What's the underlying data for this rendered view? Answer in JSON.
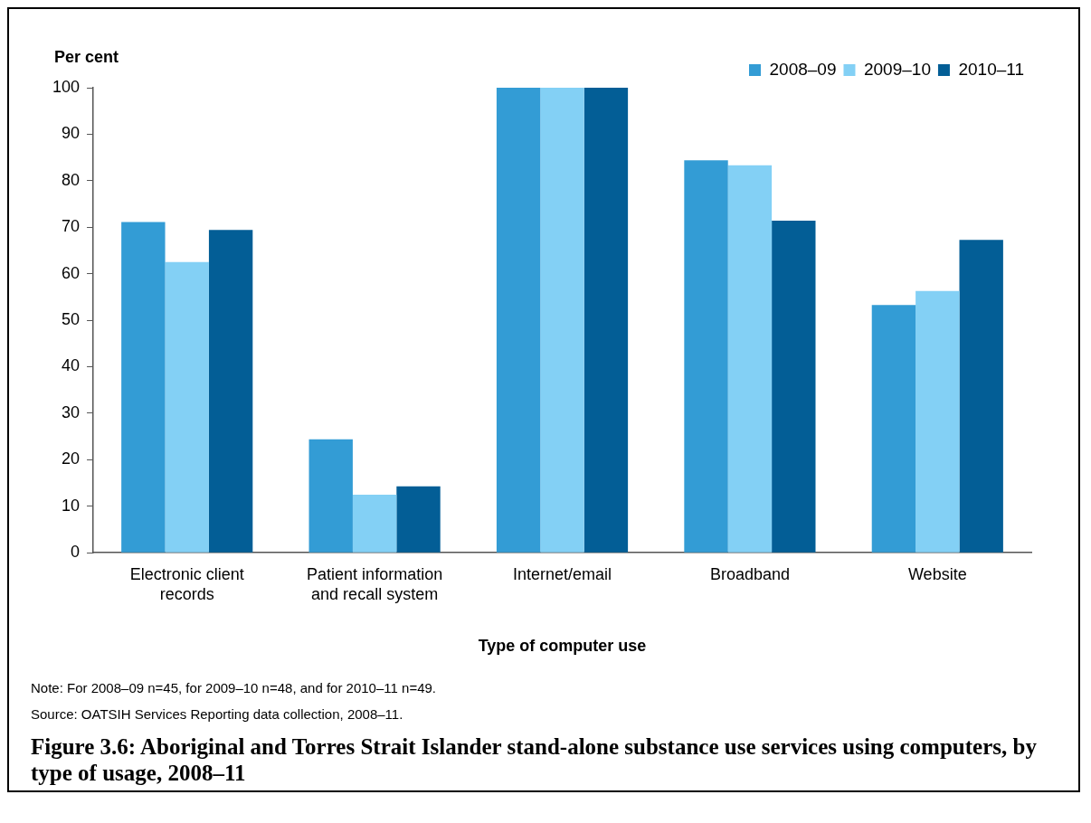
{
  "chart_data": {
    "type": "bar",
    "title": "Figure 3.6: Aboriginal and Torres Strait Islander stand-alone substance use services using computers, by type of usage, 2008–11",
    "xlabel": "Type of computer use",
    "ylabel": "Per cent",
    "categories": [
      "Electronic client records",
      "Patient information and recall system",
      "Internet/email",
      "Broadband",
      "Website"
    ],
    "series": [
      {
        "name": "2008–09",
        "color": "#339cd5",
        "values": [
          71.1,
          24.4,
          100,
          84.4,
          53.3
        ]
      },
      {
        "name": "2009–10",
        "color": "#83d0f5",
        "values": [
          62.5,
          12.5,
          100,
          83.3,
          56.3
        ]
      },
      {
        "name": "2010–11",
        "color": "#035e96",
        "values": [
          69.4,
          14.3,
          100,
          71.4,
          67.3
        ]
      }
    ],
    "ylim": [
      0,
      100
    ],
    "yticks": [
      0,
      10,
      20,
      30,
      40,
      50,
      60,
      70,
      80,
      90,
      100
    ],
    "grid": false,
    "legend": "top right",
    "annotations": [
      "Note: For 2008–09 n=45, for 2009–10 n=48, and for 2010–11 n=49.",
      "Source: OATSIH Services Reporting data collection, 2008–11."
    ]
  }
}
